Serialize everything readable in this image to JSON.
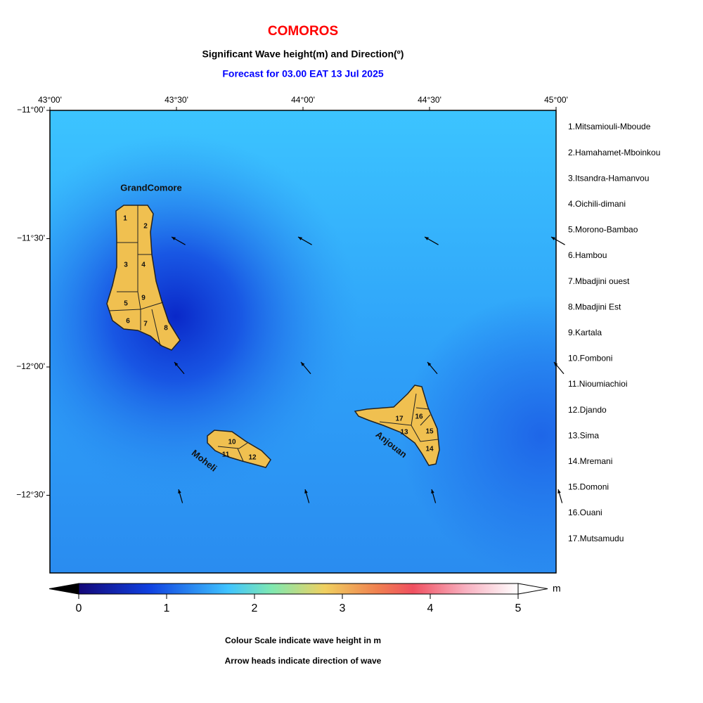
{
  "header": {
    "title": "COMOROS",
    "subtitle": "Significant Wave height(m) and Direction(º)",
    "forecast": "Forecast for  03.00 EAT 13 Jul 2025"
  },
  "map": {
    "lon_labels": [
      "43°00'",
      "43°30'",
      "44°00'",
      "44°30'",
      "45°00'"
    ],
    "lat_labels": [
      "−11°00'",
      "−11°30'",
      "−12°00'",
      "−12°30'"
    ],
    "island_labels": [
      "GrandComore",
      "Moheli",
      "Anjouan"
    ],
    "region_numbers": [
      "1",
      "2",
      "3",
      "4",
      "5",
      "6",
      "7",
      "8",
      "9",
      "10",
      "11",
      "12",
      "13",
      "14",
      "15",
      "16",
      "17"
    ]
  },
  "legend": [
    "1.Mitsamiouli-Mboude",
    "2.Hamahamet-Mboinkou",
    "3.Itsandra-Hamanvou",
    "4.Oichili-dimani",
    "5.Morono-Bambao",
    "6.Hambou",
    "7.Mbadjini ouest",
    "8.Mbadjini Est",
    "9.Kartala",
    "10.Fomboni",
    "11.Nioumiachioi",
    "12.Djando",
    "13.Sima",
    "14.Mremani",
    "15.Domoni",
    "16.Ouani",
    "17.Mutsamudu"
  ],
  "colorbar": {
    "ticks": [
      0,
      1,
      2,
      3,
      4,
      5
    ],
    "unit": "m"
  },
  "footer": [
    "Colour Scale indicate wave height in m",
    "Arrow heads indicate direction of wave"
  ]
}
